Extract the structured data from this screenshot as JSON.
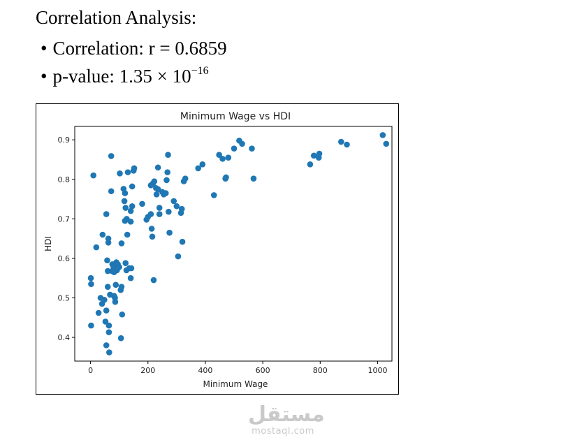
{
  "heading": "Correlation Analysis:",
  "bullets": {
    "correlation": "Correlation: r = 0.6859",
    "pvalue_prefix": "p-value: 1.35 × 10",
    "pvalue_exponent": "−16"
  },
  "watermark": {
    "logo": "مستقل",
    "url": "mostaql.com"
  },
  "chart_data": {
    "type": "scatter",
    "title": "Minimum Wage vs HDI",
    "xlabel": "Minimum Wage",
    "ylabel": "HDI",
    "xlim": [
      -55,
      1050
    ],
    "ylim": [
      0.34,
      0.934
    ],
    "xticks": [
      0,
      200,
      400,
      600,
      800,
      1000
    ],
    "yticks": [
      0.4,
      0.5,
      0.6,
      0.7,
      0.8,
      0.9
    ],
    "point_color": "#1f77b4",
    "grid": false,
    "points": [
      [
        1,
        0.55
      ],
      [
        2,
        0.535
      ],
      [
        2,
        0.43
      ],
      [
        10,
        0.81
      ],
      [
        20,
        0.628
      ],
      [
        28,
        0.462
      ],
      [
        35,
        0.5
      ],
      [
        40,
        0.485
      ],
      [
        42,
        0.66
      ],
      [
        48,
        0.495
      ],
      [
        52,
        0.44
      ],
      [
        55,
        0.712
      ],
      [
        55,
        0.468
      ],
      [
        55,
        0.38
      ],
      [
        58,
        0.595
      ],
      [
        60,
        0.528
      ],
      [
        60,
        0.568
      ],
      [
        62,
        0.64
      ],
      [
        62,
        0.65
      ],
      [
        64,
        0.43
      ],
      [
        64,
        0.413
      ],
      [
        65,
        0.362
      ],
      [
        68,
        0.508
      ],
      [
        72,
        0.859
      ],
      [
        72,
        0.77
      ],
      [
        75,
        0.568
      ],
      [
        76,
        0.585
      ],
      [
        80,
        0.578
      ],
      [
        82,
        0.505
      ],
      [
        82,
        0.565
      ],
      [
        85,
        0.5
      ],
      [
        86,
        0.49
      ],
      [
        88,
        0.533
      ],
      [
        90,
        0.59
      ],
      [
        92,
        0.57
      ],
      [
        95,
        0.585
      ],
      [
        100,
        0.578
      ],
      [
        102,
        0.815
      ],
      [
        105,
        0.52
      ],
      [
        106,
        0.398
      ],
      [
        108,
        0.638
      ],
      [
        108,
        0.528
      ],
      [
        110,
        0.458
      ],
      [
        115,
        0.776
      ],
      [
        118,
        0.745
      ],
      [
        120,
        0.695
      ],
      [
        120,
        0.765
      ],
      [
        122,
        0.728
      ],
      [
        122,
        0.588
      ],
      [
        125,
        0.57
      ],
      [
        126,
        0.7
      ],
      [
        128,
        0.66
      ],
      [
        130,
        0.818
      ],
      [
        135,
        0.575
      ],
      [
        140,
        0.72
      ],
      [
        140,
        0.693
      ],
      [
        140,
        0.55
      ],
      [
        142,
        0.575
      ],
      [
        145,
        0.782
      ],
      [
        145,
        0.732
      ],
      [
        150,
        0.822
      ],
      [
        152,
        0.828
      ],
      [
        180,
        0.738
      ],
      [
        195,
        0.698
      ],
      [
        200,
        0.705
      ],
      [
        210,
        0.712
      ],
      [
        210,
        0.785
      ],
      [
        213,
        0.675
      ],
      [
        215,
        0.655
      ],
      [
        218,
        0.79
      ],
      [
        220,
        0.545
      ],
      [
        222,
        0.795
      ],
      [
        228,
        0.778
      ],
      [
        230,
        0.762
      ],
      [
        235,
        0.83
      ],
      [
        235,
        0.775
      ],
      [
        240,
        0.728
      ],
      [
        240,
        0.712
      ],
      [
        250,
        0.768
      ],
      [
        255,
        0.762
      ],
      [
        262,
        0.765
      ],
      [
        265,
        0.798
      ],
      [
        268,
        0.818
      ],
      [
        270,
        0.862
      ],
      [
        272,
        0.718
      ],
      [
        275,
        0.665
      ],
      [
        290,
        0.745
      ],
      [
        300,
        0.732
      ],
      [
        305,
        0.605
      ],
      [
        315,
        0.715
      ],
      [
        318,
        0.725
      ],
      [
        320,
        0.642
      ],
      [
        325,
        0.795
      ],
      [
        330,
        0.802
      ],
      [
        375,
        0.828
      ],
      [
        390,
        0.838
      ],
      [
        430,
        0.76
      ],
      [
        448,
        0.862
      ],
      [
        460,
        0.852
      ],
      [
        470,
        0.802
      ],
      [
        472,
        0.805
      ],
      [
        480,
        0.855
      ],
      [
        500,
        0.878
      ],
      [
        518,
        0.898
      ],
      [
        528,
        0.89
      ],
      [
        562,
        0.878
      ],
      [
        568,
        0.802
      ],
      [
        765,
        0.838
      ],
      [
        778,
        0.86
      ],
      [
        795,
        0.855
      ],
      [
        797,
        0.865
      ],
      [
        873,
        0.895
      ],
      [
        893,
        0.888
      ],
      [
        1018,
        0.912
      ],
      [
        1030,
        0.89
      ]
    ]
  }
}
